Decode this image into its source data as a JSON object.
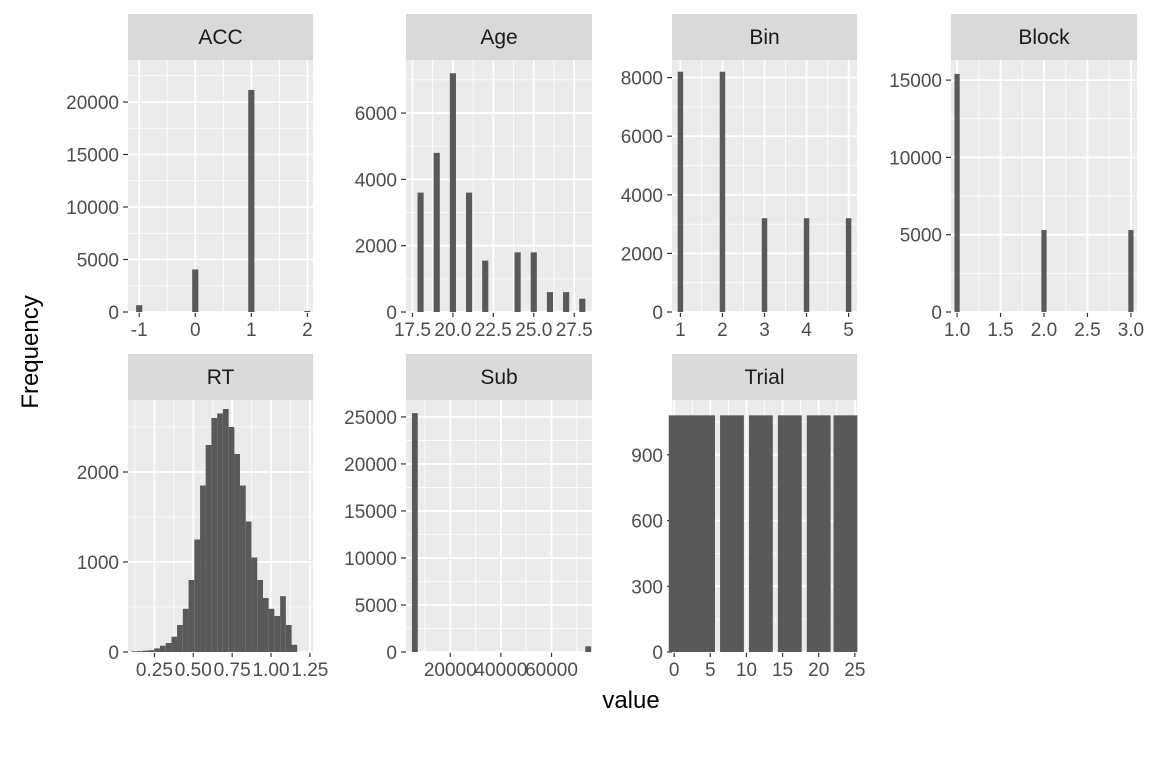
{
  "chart_data": {
    "type": "bar",
    "xlabel": "value",
    "ylabel": "Frequency",
    "accent": {
      "panel_bg": "#ebebeb",
      "strip_bg": "#d9d9d9",
      "bar": "#595959",
      "grid": "#ffffff"
    },
    "panels": [
      {
        "name": "ACC",
        "xlim": [
          -1.2,
          2.1
        ],
        "ylim": [
          0,
          24000
        ],
        "xticks": [
          -1,
          0,
          1,
          2
        ],
        "xtick_labels": [
          "-1",
          "0",
          "1",
          "2"
        ],
        "yticks": [
          0,
          5000,
          10000,
          15000,
          20000
        ],
        "ytick_labels": [
          "0",
          "5000",
          "10000",
          "15000",
          "20000"
        ],
        "bar_width": 0.11,
        "bars": [
          {
            "x": -1,
            "y": 650
          },
          {
            "x": 0,
            "y": 4050
          },
          {
            "x": 1,
            "y": 21150
          },
          {
            "x": 2,
            "y": 100
          }
        ]
      },
      {
        "name": "Age",
        "xlim": [
          17.1,
          28.6
        ],
        "ylim": [
          0,
          7600
        ],
        "xticks": [
          17.5,
          20,
          22.5,
          25,
          27.5
        ],
        "xtick_labels": [
          "17.5",
          "20.0",
          "22.5",
          "25.0",
          "27.5"
        ],
        "yticks": [
          0,
          2000,
          4000,
          6000
        ],
        "ytick_labels": [
          "0",
          "2000",
          "4000",
          "6000"
        ],
        "bar_width": 0.38,
        "bars": [
          {
            "x": 18,
            "y": 3600
          },
          {
            "x": 19,
            "y": 4800
          },
          {
            "x": 20,
            "y": 7200
          },
          {
            "x": 21,
            "y": 3600
          },
          {
            "x": 22,
            "y": 1550
          },
          {
            "x": 24,
            "y": 1800
          },
          {
            "x": 25,
            "y": 1800
          },
          {
            "x": 26,
            "y": 600
          },
          {
            "x": 27,
            "y": 600
          },
          {
            "x": 28,
            "y": 400
          }
        ]
      },
      {
        "name": "Bin",
        "xlim": [
          0.8,
          5.2
        ],
        "ylim": [
          0,
          8600
        ],
        "xticks": [
          1,
          2,
          3,
          4,
          5
        ],
        "xtick_labels": [
          "1",
          "2",
          "3",
          "4",
          "5"
        ],
        "yticks": [
          0,
          2000,
          4000,
          6000,
          8000
        ],
        "ytick_labels": [
          "0",
          "2000",
          "4000",
          "6000",
          "8000"
        ],
        "bar_width": 0.13,
        "bars": [
          {
            "x": 1,
            "y": 8200
          },
          {
            "x": 2,
            "y": 8200
          },
          {
            "x": 3,
            "y": 3200
          },
          {
            "x": 4,
            "y": 3200
          },
          {
            "x": 5,
            "y": 3200
          }
        ]
      },
      {
        "name": "Block",
        "xlim": [
          0.93,
          3.07
        ],
        "ylim": [
          0,
          16300
        ],
        "xticks": [
          1,
          1.5,
          2,
          2.5,
          3
        ],
        "xtick_labels": [
          "1.0",
          "1.5",
          "2.0",
          "2.5",
          "3.0"
        ],
        "yticks": [
          0,
          5000,
          10000,
          15000
        ],
        "ytick_labels": [
          "0",
          "5000",
          "10000",
          "15000"
        ],
        "bar_width": 0.06,
        "bars": [
          {
            "x": 1,
            "y": 15400
          },
          {
            "x": 2,
            "y": 5300
          },
          {
            "x": 3,
            "y": 5300
          }
        ]
      },
      {
        "name": "RT",
        "xlim": [
          0.08,
          1.27
        ],
        "ylim": [
          0,
          2800
        ],
        "xticks": [
          0.25,
          0.5,
          0.75,
          1,
          1.25
        ],
        "xtick_labels": [
          "0.25",
          "0.50",
          "0.75",
          "1.00",
          "1.25"
        ],
        "yticks": [
          0,
          1000,
          2000
        ],
        "ytick_labels": [
          "0",
          "1000",
          "2000"
        ],
        "bar_width": 0.0368,
        "bars": [
          {
            "x": 0.12,
            "y": 8
          },
          {
            "x": 0.157,
            "y": 10
          },
          {
            "x": 0.193,
            "y": 15
          },
          {
            "x": 0.23,
            "y": 20
          },
          {
            "x": 0.267,
            "y": 40
          },
          {
            "x": 0.304,
            "y": 70
          },
          {
            "x": 0.341,
            "y": 100
          },
          {
            "x": 0.378,
            "y": 170
          },
          {
            "x": 0.414,
            "y": 300
          },
          {
            "x": 0.451,
            "y": 480
          },
          {
            "x": 0.488,
            "y": 800
          },
          {
            "x": 0.525,
            "y": 1250
          },
          {
            "x": 0.562,
            "y": 1850
          },
          {
            "x": 0.598,
            "y": 2300
          },
          {
            "x": 0.635,
            "y": 2600
          },
          {
            "x": 0.672,
            "y": 2650
          },
          {
            "x": 0.709,
            "y": 2700
          },
          {
            "x": 0.746,
            "y": 2500
          },
          {
            "x": 0.782,
            "y": 2200
          },
          {
            "x": 0.819,
            "y": 1850
          },
          {
            "x": 0.856,
            "y": 1450
          },
          {
            "x": 0.893,
            "y": 1050
          },
          {
            "x": 0.93,
            "y": 800
          },
          {
            "x": 0.966,
            "y": 600
          },
          {
            "x": 1.003,
            "y": 480
          },
          {
            "x": 1.04,
            "y": 400
          },
          {
            "x": 1.077,
            "y": 620
          },
          {
            "x": 1.114,
            "y": 300
          },
          {
            "x": 1.15,
            "y": 80
          }
        ]
      },
      {
        "name": "Sub",
        "xlim": [
          2500,
          76000
        ],
        "ylim": [
          0,
          26800
        ],
        "xticks": [
          20000,
          40000,
          60000
        ],
        "xtick_labels": [
          "20000",
          "40000",
          "60000"
        ],
        "yticks": [
          0,
          5000,
          10000,
          15000,
          20000,
          25000
        ],
        "ytick_labels": [
          "0",
          "5000",
          "10000",
          "15000",
          "20000",
          "25000"
        ],
        "bar_width": 2300,
        "bars": [
          {
            "x": 6000,
            "y": 25400
          },
          {
            "x": 74500,
            "y": 600
          }
        ]
      },
      {
        "name": "Trial",
        "xlim": [
          -0.3,
          25.3
        ],
        "ylim": [
          0,
          1150
        ],
        "xticks": [
          0,
          5,
          10,
          15,
          20,
          25
        ],
        "xtick_labels": [
          "0",
          "5",
          "10",
          "15",
          "20",
          "25"
        ],
        "yticks": [
          0,
          300,
          600,
          900
        ],
        "ytick_labels": [
          "0",
          "300",
          "600",
          "900"
        ],
        "bar_width": 3.3,
        "bars": [
          {
            "x": 0.9,
            "y": 1080
          },
          {
            "x": 4.0,
            "y": 1080
          },
          {
            "x": 8.0,
            "y": 1080
          },
          {
            "x": 12.0,
            "y": 1080
          },
          {
            "x": 16.0,
            "y": 1080
          },
          {
            "x": 20.0,
            "y": 1080
          },
          {
            "x": 23.7,
            "y": 1080
          }
        ]
      }
    ]
  }
}
